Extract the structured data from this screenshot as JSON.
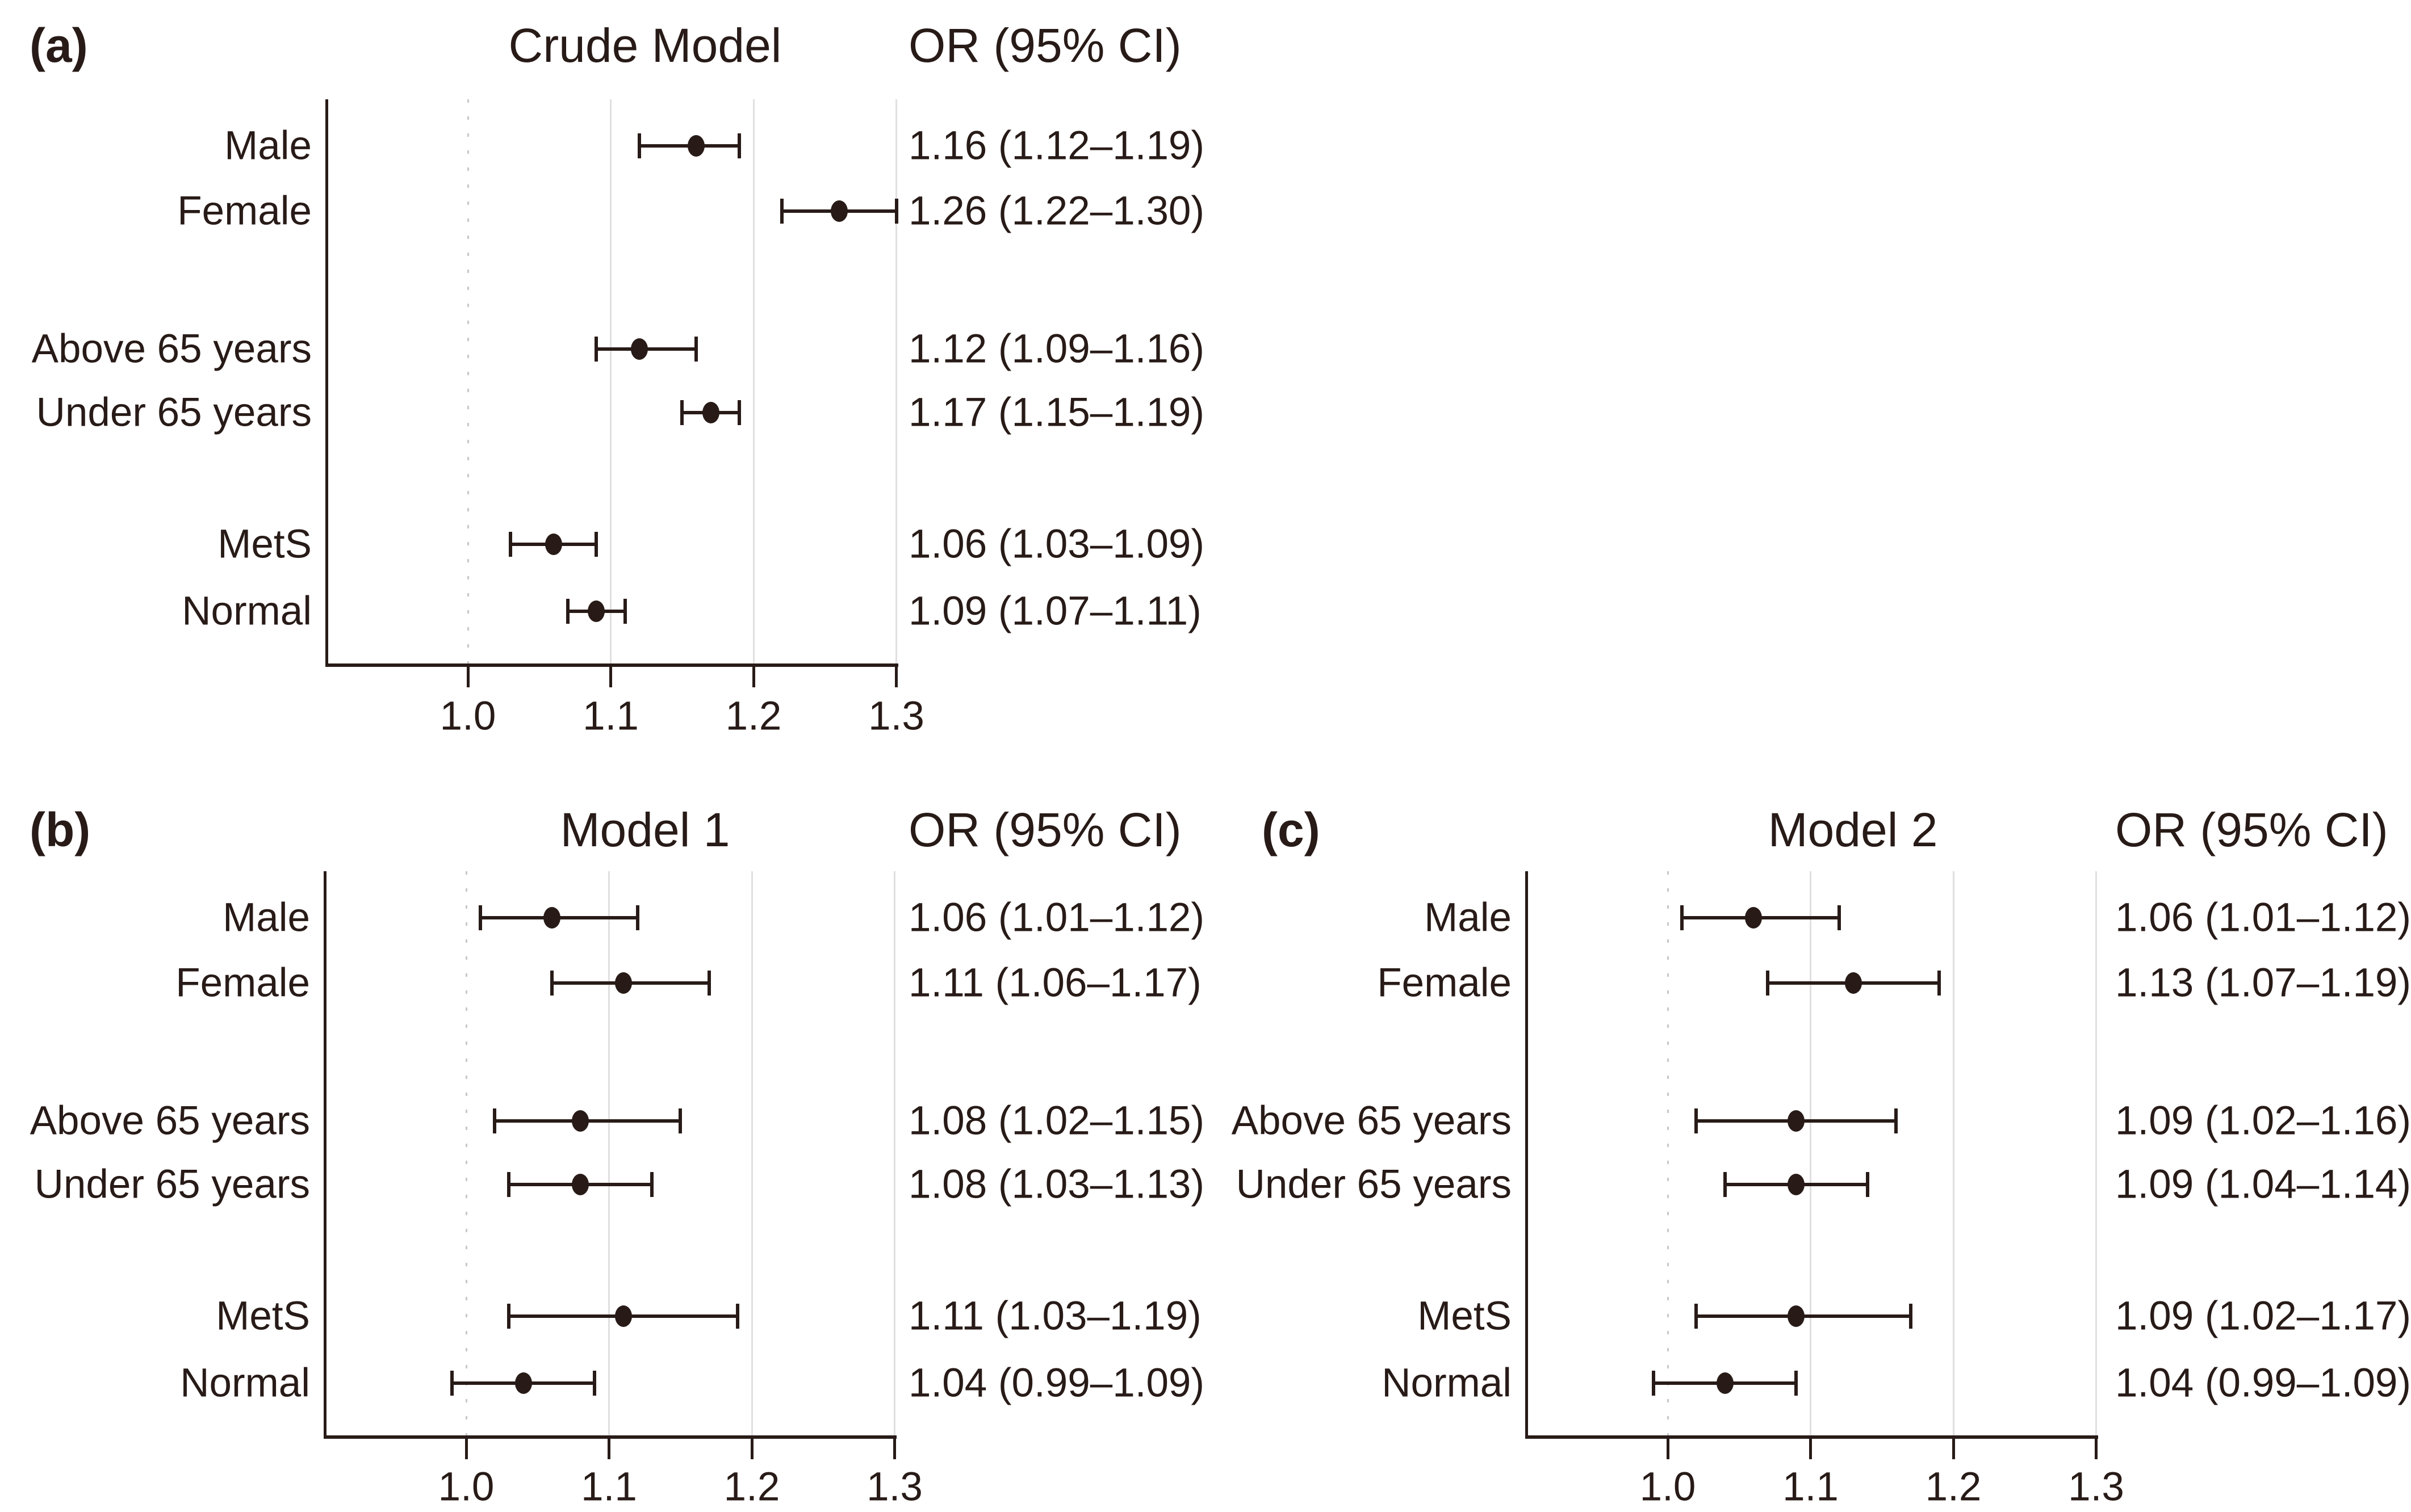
{
  "figure": {
    "background": "#ffffff",
    "ink_color": "#281b17",
    "grid_color": "#e1dfdf",
    "ref_line_color": "#c9c7c7"
  },
  "axis": {
    "ticks": [
      "1.0",
      "1.1",
      "1.2",
      "1.3"
    ],
    "tick_values": [
      1.0,
      1.1,
      1.2,
      1.3
    ],
    "ref_value": 1.0,
    "range": [
      0.9,
      1.3
    ]
  },
  "chart_data": [
    {
      "type": "scatter",
      "panel_label": "(a)",
      "title": "Crude Model",
      "or_header": "OR (95% CI)",
      "xlabel": "",
      "x_ticks": [
        "1.0",
        "1.1",
        "1.2",
        "1.3"
      ],
      "x_range": [
        0.9,
        1.3
      ],
      "reference_line": 1.0,
      "grid": "vertical",
      "rows": [
        {
          "label": "Male",
          "or": 1.16,
          "ci_low": 1.12,
          "ci_high": 1.19,
          "text": "1.16 (1.12–1.19)"
        },
        {
          "label": "Female",
          "or": 1.26,
          "ci_low": 1.22,
          "ci_high": 1.3,
          "text": "1.26 (1.22–1.30)"
        },
        {
          "label": "Above 65 years",
          "or": 1.12,
          "ci_low": 1.09,
          "ci_high": 1.16,
          "text": "1.12 (1.09–1.16)"
        },
        {
          "label": "Under 65 years",
          "or": 1.17,
          "ci_low": 1.15,
          "ci_high": 1.19,
          "text": "1.17 (1.15–1.19)"
        },
        {
          "label": "MetS",
          "or": 1.06,
          "ci_low": 1.03,
          "ci_high": 1.09,
          "text": "1.06 (1.03–1.09)"
        },
        {
          "label": "Normal",
          "or": 1.09,
          "ci_low": 1.07,
          "ci_high": 1.11,
          "text": "1.09 (1.07–1.11)"
        }
      ]
    },
    {
      "type": "scatter",
      "panel_label": "(b)",
      "title": "Model 1",
      "or_header": "OR (95% CI)",
      "xlabel": "",
      "x_ticks": [
        "1.0",
        "1.1",
        "1.2",
        "1.3"
      ],
      "x_range": [
        0.9,
        1.3
      ],
      "reference_line": 1.0,
      "grid": "vertical",
      "rows": [
        {
          "label": "Male",
          "or": 1.06,
          "ci_low": 1.01,
          "ci_high": 1.12,
          "text": "1.06 (1.01–1.12)"
        },
        {
          "label": "Female",
          "or": 1.11,
          "ci_low": 1.06,
          "ci_high": 1.17,
          "text": "1.11 (1.06–1.17)"
        },
        {
          "label": "Above 65 years",
          "or": 1.08,
          "ci_low": 1.02,
          "ci_high": 1.15,
          "text": "1.08 (1.02–1.15)"
        },
        {
          "label": "Under 65 years",
          "or": 1.08,
          "ci_low": 1.03,
          "ci_high": 1.13,
          "text": "1.08 (1.03–1.13)"
        },
        {
          "label": "MetS",
          "or": 1.11,
          "ci_low": 1.03,
          "ci_high": 1.19,
          "text": "1.11 (1.03–1.19)"
        },
        {
          "label": "Normal",
          "or": 1.04,
          "ci_low": 0.99,
          "ci_high": 1.09,
          "text": "1.04 (0.99–1.09)"
        }
      ]
    },
    {
      "type": "scatter",
      "panel_label": "(c)",
      "title": "Model 2",
      "or_header": "OR (95% CI)",
      "xlabel": "",
      "x_ticks": [
        "1.0",
        "1.1",
        "1.2",
        "1.3"
      ],
      "x_range": [
        0.9,
        1.3
      ],
      "reference_line": 1.0,
      "grid": "vertical",
      "rows": [
        {
          "label": "Male",
          "or": 1.06,
          "ci_low": 1.01,
          "ci_high": 1.12,
          "text": "1.06 (1.01–1.12)"
        },
        {
          "label": "Female",
          "or": 1.13,
          "ci_low": 1.07,
          "ci_high": 1.19,
          "text": "1.13 (1.07–1.19)"
        },
        {
          "label": "Above 65 years",
          "or": 1.09,
          "ci_low": 1.02,
          "ci_high": 1.16,
          "text": "1.09 (1.02–1.16)"
        },
        {
          "label": "Under 65 years",
          "or": 1.09,
          "ci_low": 1.04,
          "ci_high": 1.14,
          "text": "1.09 (1.04–1.14)"
        },
        {
          "label": "MetS",
          "or": 1.09,
          "ci_low": 1.02,
          "ci_high": 1.17,
          "text": "1.09 (1.02–1.17)"
        },
        {
          "label": "Normal",
          "or": 1.04,
          "ci_low": 0.99,
          "ci_high": 1.09,
          "text": "1.04 (0.99–1.09)"
        }
      ]
    }
  ]
}
